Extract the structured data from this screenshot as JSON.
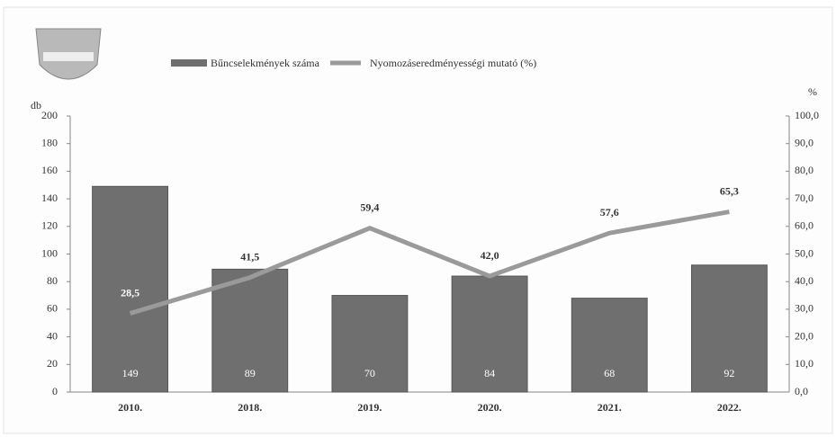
{
  "chart_data": {
    "type": "bar",
    "categories": [
      "2010.",
      "2018.",
      "2019.",
      "2020.",
      "2021.",
      "2022."
    ],
    "y_label": "db",
    "y2_label": "%",
    "series": [
      {
        "name": "Bűncselekmények száma",
        "type": "bar",
        "color": "#6f6f6f",
        "values": [
          149,
          89,
          70,
          84,
          68,
          92
        ]
      },
      {
        "name": "Nyomozáseredményességi mutató (%)",
        "type": "line",
        "axis": "y2",
        "color": "#9a9a9a",
        "values": [
          28.5,
          41.5,
          59.4,
          42.0,
          57.6,
          65.3
        ],
        "value_labels": [
          "28,5",
          "41,5",
          "59,4",
          "42,0",
          "57,6",
          "65,3"
        ]
      }
    ],
    "ylim": [
      0,
      200
    ],
    "yticks": [
      0,
      20,
      40,
      60,
      80,
      100,
      120,
      140,
      160,
      180,
      200
    ],
    "y2lim": [
      0,
      100
    ],
    "y2ticks": [
      {
        "value": 0,
        "label": "0,0"
      },
      {
        "value": 10,
        "label": "10,0"
      },
      {
        "value": 20,
        "label": "20,0"
      },
      {
        "value": 30,
        "label": "30,0"
      },
      {
        "value": 40,
        "label": "40,0"
      },
      {
        "value": 50,
        "label": "50,0"
      },
      {
        "value": 60,
        "label": "60,0"
      },
      {
        "value": 70,
        "label": "70,0"
      },
      {
        "value": 80,
        "label": "80,0"
      },
      {
        "value": 90,
        "label": "90,0"
      },
      {
        "value": 100,
        "label": "100,0"
      }
    ],
    "grid": false
  }
}
